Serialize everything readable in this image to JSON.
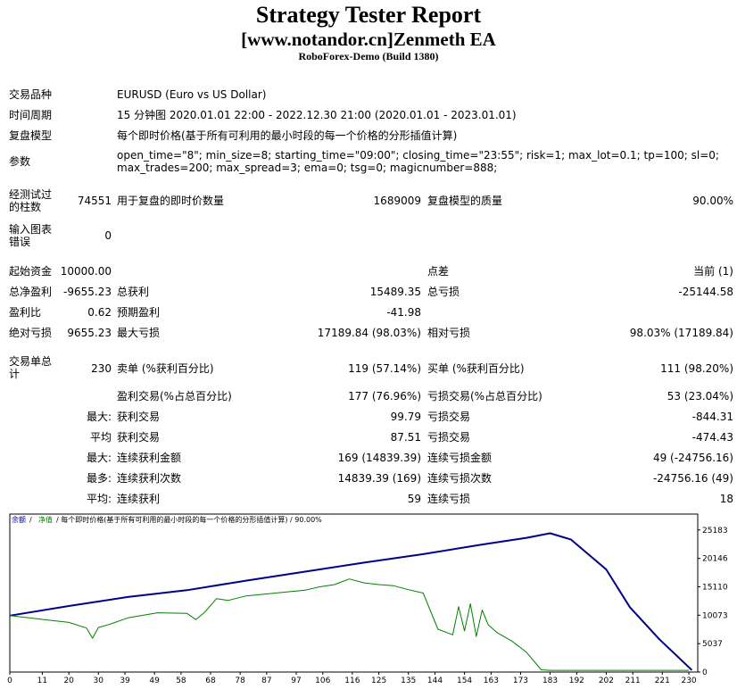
{
  "header": {
    "title": "Strategy Tester Report",
    "subtitle": "[www.notandor.cn]Zenmeth EA",
    "build": "RoboForex-Demo (Build 1380)"
  },
  "settings": {
    "symbol_label": "交易品种",
    "symbol_value": "EURUSD (Euro vs US Dollar)",
    "period_label": "时间周期",
    "period_value": "15 分钟图 2020.01.01 22:00 - 2022.12.30 21:00 (2020.01.01 - 2023.01.01)",
    "model_label": "复盘模型",
    "model_value": "每个即时价格(基于所有可利用的最小时段的每一个价格的分形插值计算)",
    "params_label": "参数",
    "params_line1": "open_time=\"8\"; min_size=8; starting_time=\"09:00\"; closing_time=\"23:55\"; risk=1; max_lot=0.1; tp=100; sl=0;",
    "params_line2": "max_trades=200; max_spread=3; ema=0; tsg=0; magicnumber=888;"
  },
  "bars": {
    "bars_label": "经测试过的柱数",
    "bars_value": "74551",
    "ticks_label": "用于复盘的即时价数量",
    "ticks_value": "1689009",
    "quality_label": "复盘模型的质量",
    "quality_value": "90.00%",
    "errors_label": "输入图表错误",
    "errors_value": "0"
  },
  "results": {
    "deposit_label": "起始资金",
    "deposit_value": "10000.00",
    "spread_label": "点差",
    "spread_value": "当前 (1)",
    "net_label": "总净盈利",
    "net_value": "-9655.23",
    "gross_profit_label": "总获利",
    "gross_profit_value": "15489.35",
    "gross_loss_label": "总亏损",
    "gross_loss_value": "-25144.58",
    "pf_label": "盈利比",
    "pf_value": "0.62",
    "expected_label": "预期盈利",
    "expected_value": "-41.98",
    "abs_dd_label": "绝对亏损",
    "abs_dd_value": "9655.23",
    "max_dd_label": "最大亏损",
    "max_dd_value": "17189.84 (98.03%)",
    "rel_dd_label": "相对亏损",
    "rel_dd_value": "98.03% (17189.84)"
  },
  "trades": {
    "total_label": "交易单总计",
    "total_value": "230",
    "short_label": "卖单 (%获利百分比)",
    "short_value": "119 (57.14%)",
    "long_label": "买单 (%获利百分比)",
    "long_value": "111 (98.20%)",
    "profit_trades_label": "盈利交易(%占总百分比)",
    "profit_trades_value": "177 (76.96%)",
    "loss_trades_label": "亏损交易(%占总百分比)",
    "loss_trades_value": "53 (23.04%)",
    "largest_label": "最大:",
    "largest_profit_label": "获利交易",
    "largest_profit_value": "99.79",
    "largest_loss_label": "亏损交易",
    "largest_loss_value": "-844.31",
    "average_label": "平均",
    "average_profit_label": "获利交易",
    "average_profit_value": "87.51",
    "average_loss_label": "亏损交易",
    "average_loss_value": "-474.43",
    "max_label": "最大:",
    "max_consec_wins_label": "连续获利金额",
    "max_consec_wins_value": "169 (14839.39)",
    "max_consec_losses_label": "连续亏损金额",
    "max_consec_losses_value": "49 (-24756.16)",
    "maximal_label": "最多:",
    "maximal_consec_profit_label": "连续获利次数",
    "maximal_consec_profit_value": "14839.39 (169)",
    "maximal_consec_loss_label": "连续亏损次数",
    "maximal_consec_loss_value": "-24756.16 (49)",
    "avg_consec_label": "平均:",
    "avg_consec_wins_label": "连续获利",
    "avg_consec_wins_value": "59",
    "avg_consec_losses_label": "连续亏损",
    "avg_consec_losses_value": "18"
  },
  "chart_data": {
    "type": "line",
    "legend_balance": "余额",
    "legend_sep1": " / ",
    "legend_equity": "净值",
    "legend_rest": " / 每个即时价格(基于所有可利用的最小时段的每一个价格的分形插值计算) / 90.00%",
    "xlim": [
      0,
      233
    ],
    "ylim": [
      0,
      28000
    ],
    "x_ticks": [
      0,
      11,
      20,
      30,
      39,
      49,
      58,
      68,
      78,
      87,
      97,
      106,
      116,
      125,
      135,
      144,
      154,
      163,
      173,
      183,
      192,
      202,
      211,
      221,
      230
    ],
    "y_ticks": [
      0,
      5037,
      10073,
      15110,
      20146,
      25183
    ],
    "colors": {
      "balance": "#00008b",
      "equity": "#008000",
      "frame": "#000000",
      "grid": "#bfbfbf"
    },
    "series": [
      {
        "name": "余额",
        "x": [
          0,
          20,
          40,
          60,
          80,
          100,
          120,
          140,
          160,
          175,
          183,
          190,
          202,
          210,
          220,
          231
        ],
        "y": [
          10000,
          11700,
          13300,
          14500,
          16200,
          17800,
          19400,
          20900,
          22600,
          23800,
          24600,
          23500,
          18200,
          11500,
          5800,
          350
        ]
      },
      {
        "name": "净值",
        "x": [
          0,
          10,
          20,
          26,
          28,
          30,
          34,
          40,
          50,
          60,
          63,
          66,
          70,
          74,
          80,
          90,
          100,
          105,
          110,
          115,
          120,
          125,
          130,
          135,
          140,
          145,
          150,
          152,
          154,
          156,
          158,
          160,
          162,
          165,
          170,
          175,
          180,
          183,
          190,
          200,
          210,
          220,
          230
        ],
        "y": [
          10000,
          9400,
          8800,
          7800,
          6000,
          7900,
          8500,
          9600,
          10500,
          10400,
          9300,
          10600,
          13000,
          12700,
          13500,
          14000,
          14500,
          15100,
          15500,
          16500,
          15800,
          15500,
          15300,
          14600,
          14000,
          7600,
          6600,
          11600,
          7300,
          12100,
          6300,
          11000,
          8400,
          7000,
          5500,
          3500,
          400,
          300,
          300,
          300,
          300,
          300,
          300
        ]
      }
    ]
  }
}
